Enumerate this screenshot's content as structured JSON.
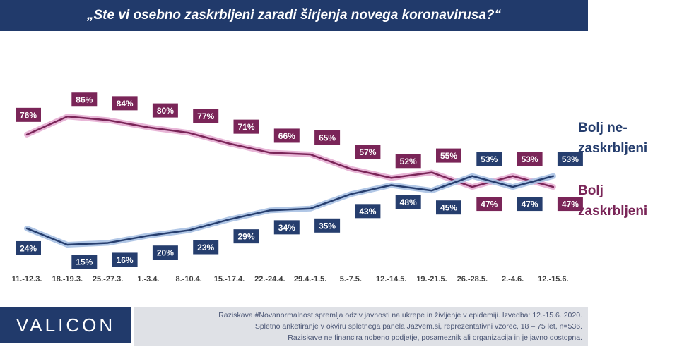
{
  "title": "„Ste vi osebno zaskrbljeni zaradi širjenja novega koronavirusa?“",
  "legend": {
    "not_worried_line1": "Bolj ne-",
    "not_worried_line2": "zaskrbljeni",
    "worried_line1": "Bolj",
    "worried_line2": "zaskrbljeni"
  },
  "colors": {
    "not_worried": "#263e6e",
    "worried": "#7a2558",
    "not_worried_glow": "#a9c1e3",
    "worried_glow": "#e6aed3",
    "brand": "#213a6b"
  },
  "logo": "VALICON",
  "footer": {
    "line1": "Raziskava #Novanormalnost spremlja odziv javnosti na ukrepe in življenje v epidemiji. Izvedba: 12.-15.6. 2020.",
    "line2": "Spletno anketiranje v okviru spletnega panela Jazvem.si, reprezentativni vzorec, 18 – 75 let, n=536.",
    "line3": "Raziskave ne financira nobeno podjetje, posameznik ali organizacija in je javno dostopna."
  },
  "chart_data": {
    "type": "line",
    "categories": [
      "11.-12.3.",
      "18.-19.3.",
      "25.-27.3.",
      "1.-3.4.",
      "8.-10.4.",
      "15.-17.4.",
      "22.-24.4.",
      "29.4.-1.5.",
      "5.-7.5.",
      "12.-14.5.",
      "19.-21.5.",
      "26.-28.5.",
      "2.-4.6.",
      "12.-15.6."
    ],
    "series": [
      {
        "name": "Bolj zaskrbljeni",
        "values": [
          76,
          86,
          84,
          80,
          77,
          71,
          66,
          65,
          57,
          52,
          55,
          47,
          53,
          47
        ],
        "labels": [
          "76%",
          "86%",
          "84%",
          "80%",
          "77%",
          "71%",
          "66%",
          "65%",
          "57%",
          "52%",
          "55%",
          "47%",
          "53%",
          "47%"
        ]
      },
      {
        "name": "Bolj ne-zaskrbljeni",
        "values": [
          24,
          15,
          16,
          20,
          23,
          29,
          34,
          35,
          43,
          48,
          45,
          53,
          47,
          53
        ],
        "labels": [
          "24%",
          "15%",
          "16%",
          "20%",
          "23%",
          "29%",
          "34%",
          "35%",
          "43%",
          "48%",
          "45%",
          "53%",
          "47%",
          "53%"
        ]
      }
    ],
    "grid": false,
    "legend_position": "right"
  }
}
